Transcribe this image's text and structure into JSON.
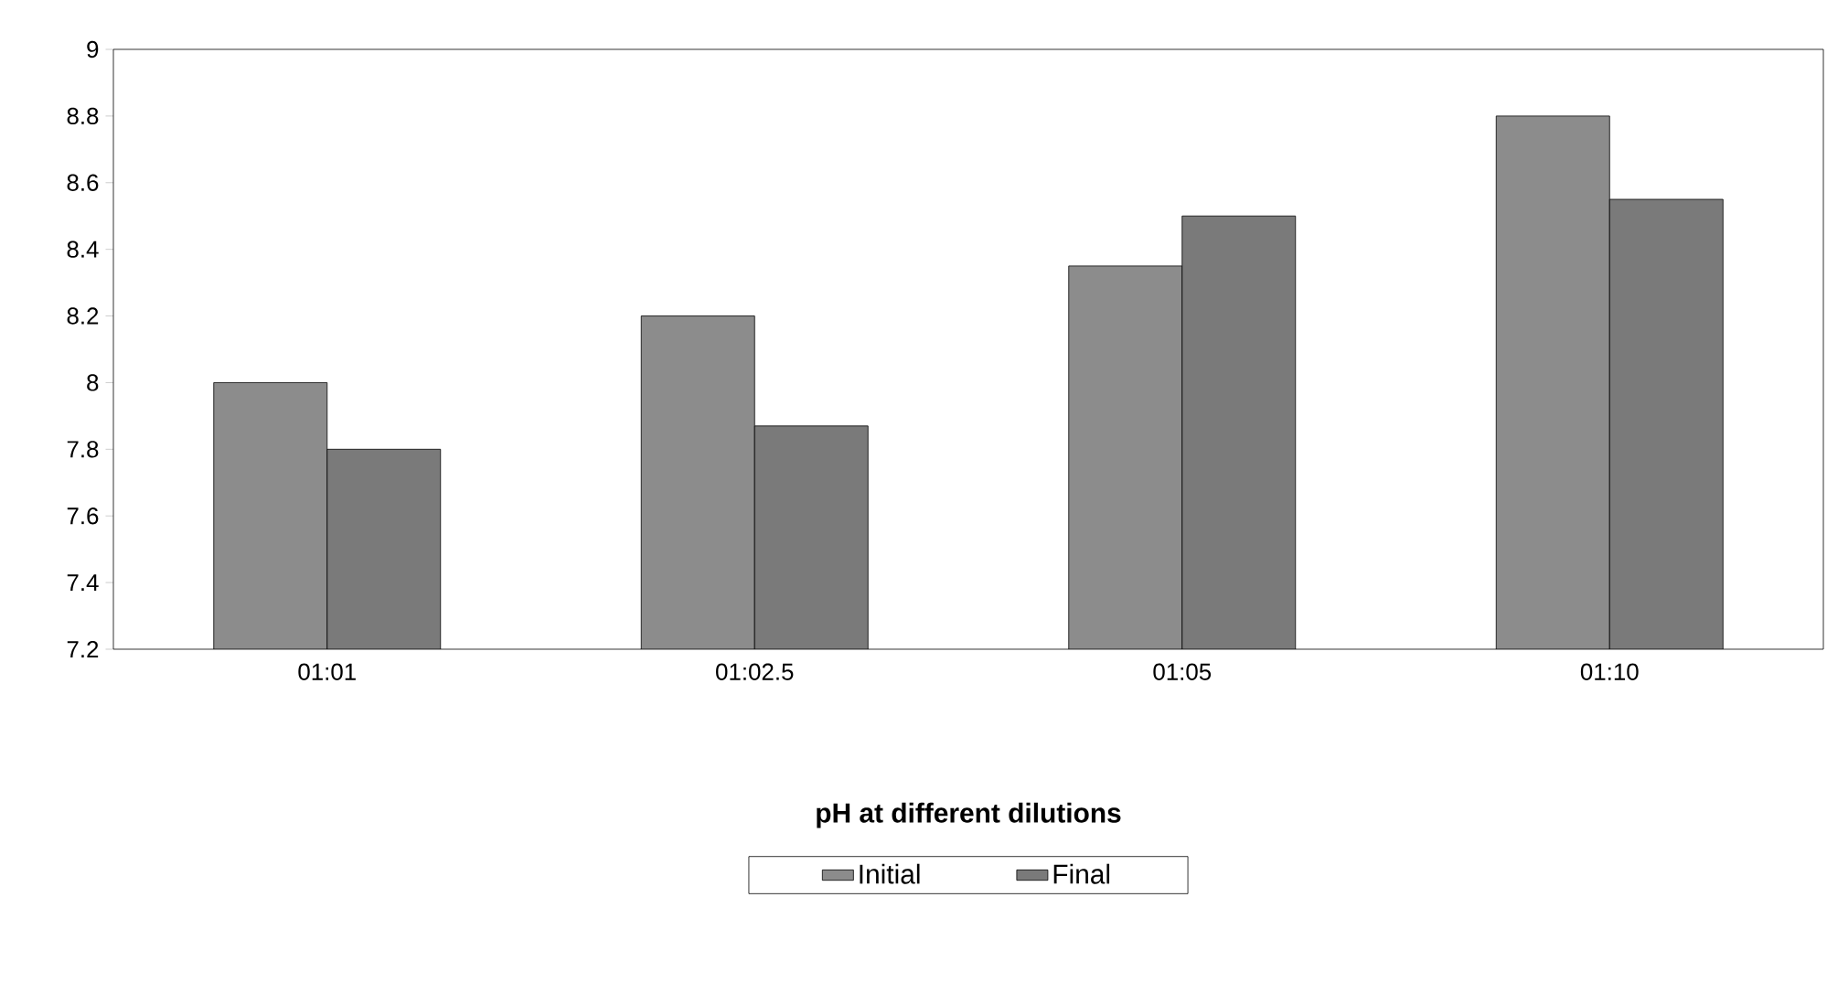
{
  "chart_data": {
    "type": "bar",
    "xlabel": "pH at different dilutions",
    "categories": [
      "01:01",
      "01:02.5",
      "01:05",
      "01:10"
    ],
    "series": [
      {
        "name": "Initial",
        "color": "#8c8c8c",
        "values": [
          8.0,
          8.2,
          8.35,
          8.8
        ]
      },
      {
        "name": "Final",
        "color": "#7a7a7a",
        "values": [
          7.8,
          7.87,
          8.5,
          8.55
        ]
      }
    ],
    "ylim": [
      7.2,
      9
    ],
    "yticks": [
      7.2,
      7.4,
      7.6,
      7.8,
      8,
      8.2,
      8.4,
      8.6,
      8.8,
      9
    ],
    "grid": false,
    "legend": "bottom"
  }
}
